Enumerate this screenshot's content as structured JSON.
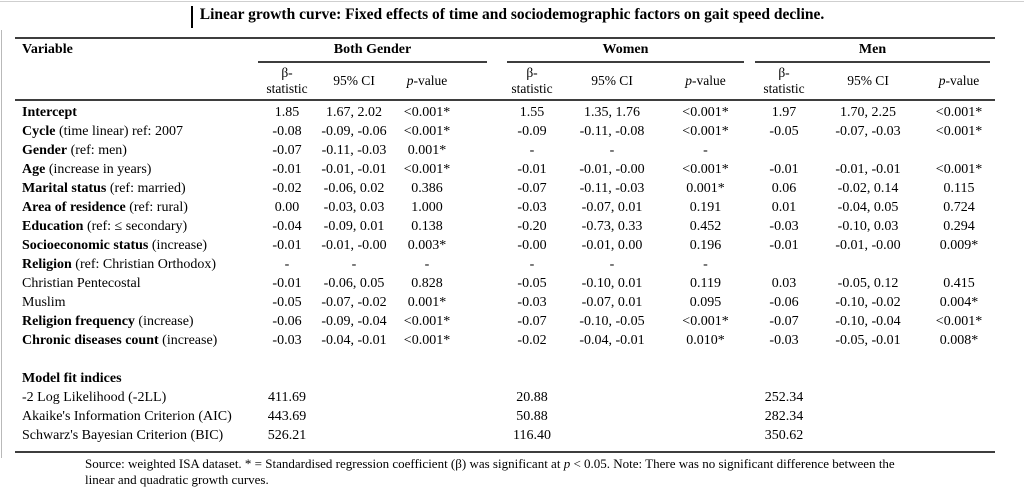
{
  "title": "Linear growth curve: Fixed effects of time and sociodemographic factors on gait speed decline.",
  "table": {
    "variable_header": "Variable",
    "groups": [
      {
        "label": "Both Gender"
      },
      {
        "label": "Women"
      },
      {
        "label": "Men"
      }
    ],
    "subheader": {
      "beta_line1": "β-",
      "beta_line2": "statistic",
      "ci": "95% CI",
      "p_italic": "p",
      "p_rest": "-value"
    },
    "rows": [
      {
        "bold": "Intercept",
        "rest": "",
        "bg": [
          "1.85",
          "1.67, 2.02",
          "<0.001*"
        ],
        "women": [
          "1.55",
          "1.35, 1.76",
          "<0.001*"
        ],
        "men": [
          "1.97",
          "1.70, 2.25",
          "<0.001*"
        ]
      },
      {
        "bold": "Cycle",
        "rest": " (time linear) ref: 2007",
        "bg": [
          "-0.08",
          "-0.09, -0.06",
          "<0.001*"
        ],
        "women": [
          "-0.09",
          "-0.11, -0.08",
          "<0.001*"
        ],
        "men": [
          "-0.05",
          "-0.07, -0.03",
          "<0.001*"
        ]
      },
      {
        "bold": "Gender",
        "rest": " (ref: men)",
        "bg": [
          "-0.07",
          "-0.11, -0.03",
          "0.001*"
        ],
        "women": [
          "-",
          "-",
          "-"
        ],
        "men": [
          "",
          "",
          ""
        ]
      },
      {
        "bold": "Age",
        "rest": " (increase in years)",
        "bg": [
          "-0.01",
          "-0.01, -0.01",
          "<0.001*"
        ],
        "women": [
          "-0.01",
          "-0.01, -0.00",
          "<0.001*"
        ],
        "men": [
          "-0.01",
          "-0.01, -0.01",
          "<0.001*"
        ]
      },
      {
        "bold": "Marital status",
        "rest": " (ref: married)",
        "bg": [
          "-0.02",
          "-0.06, 0.02",
          "0.386"
        ],
        "women": [
          "-0.07",
          "-0.11, -0.03",
          "0.001*"
        ],
        "men": [
          "0.06",
          "-0.02, 0.14",
          "0.115"
        ]
      },
      {
        "bold": "Area of residence",
        "rest": " (ref: rural)",
        "bg": [
          "0.00",
          "-0.03, 0.03",
          "1.000"
        ],
        "women": [
          "-0.03",
          "-0.07, 0.01",
          "0.191"
        ],
        "men": [
          "0.01",
          "-0.04, 0.05",
          "0.724"
        ]
      },
      {
        "bold": "Education",
        "rest": " (ref: ≤ secondary)",
        "bg": [
          "-0.04",
          "-0.09, 0.01",
          "0.138"
        ],
        "women": [
          "-0.20",
          "-0.73, 0.33",
          "0.452"
        ],
        "men": [
          "-0.03",
          "-0.10, 0.03",
          "0.294"
        ]
      },
      {
        "bold": "Socioeconomic status",
        "rest": " (increase)",
        "bg": [
          "-0.01",
          "-0.01, -0.00",
          "0.003*"
        ],
        "women": [
          "-0.00",
          "-0.01, 0.00",
          "0.196"
        ],
        "men": [
          "-0.01",
          "-0.01, -0.00",
          "0.009*"
        ]
      },
      {
        "bold": "Religion",
        "rest": " (ref: Christian Orthodox)",
        "bg": [
          "-",
          "-",
          "-"
        ],
        "women": [
          "-",
          "-",
          "-"
        ],
        "men": [
          "",
          "",
          ""
        ]
      },
      {
        "bold": "",
        "rest": "Christian Pentecostal",
        "bg": [
          "-0.01",
          "-0.06, 0.05",
          "0.828"
        ],
        "women": [
          "-0.05",
          "-0.10, 0.01",
          "0.119"
        ],
        "men": [
          "0.03",
          "-0.05, 0.12",
          "0.415"
        ]
      },
      {
        "bold": "",
        "rest": "Muslim",
        "bg": [
          "-0.05",
          "-0.07, -0.02",
          "0.001*"
        ],
        "women": [
          "-0.03",
          "-0.07, 0.01",
          "0.095"
        ],
        "men": [
          "-0.06",
          "-0.10, -0.02",
          "0.004*"
        ]
      },
      {
        "bold": "Religion frequency",
        "rest": " (increase)",
        "bg": [
          "-0.06",
          "-0.09, -0.04",
          "<0.001*"
        ],
        "women": [
          "-0.07",
          "-0.10, -0.05",
          "<0.001*"
        ],
        "men": [
          "-0.07",
          "-0.10, -0.04",
          "<0.001*"
        ]
      },
      {
        "bold": "Chronic diseases count",
        "rest": " (increase)",
        "bg": [
          "-0.03",
          "-0.04, -0.01",
          "<0.001*"
        ],
        "women": [
          "-0.02",
          "-0.04, -0.01",
          "0.010*"
        ],
        "men": [
          "-0.03",
          "-0.05, -0.01",
          "0.008*"
        ]
      }
    ],
    "model_fit": {
      "header": "Model fit indices",
      "rows": [
        {
          "label": "-2 Log Likelihood (-2LL)",
          "bg": "411.69",
          "women": "20.88",
          "men": "252.34"
        },
        {
          "label": "Akaike's Information Criterion (AIC)",
          "bg": "443.69",
          "women": "50.88",
          "men": "282.34"
        },
        {
          "label": "Schwarz's Bayesian Criterion (BIC)",
          "bg": "526.21",
          "women": "116.40",
          "men": "350.62"
        }
      ]
    }
  },
  "footnote": {
    "line1_pre": "Source: weighted ISA dataset. * = Standardised regression coefficient (β) was significant at ",
    "line1_p": "p",
    "line1_post": " < 0.05. Note: There was no significant difference between the",
    "line2": "linear and quadratic growth curves."
  }
}
